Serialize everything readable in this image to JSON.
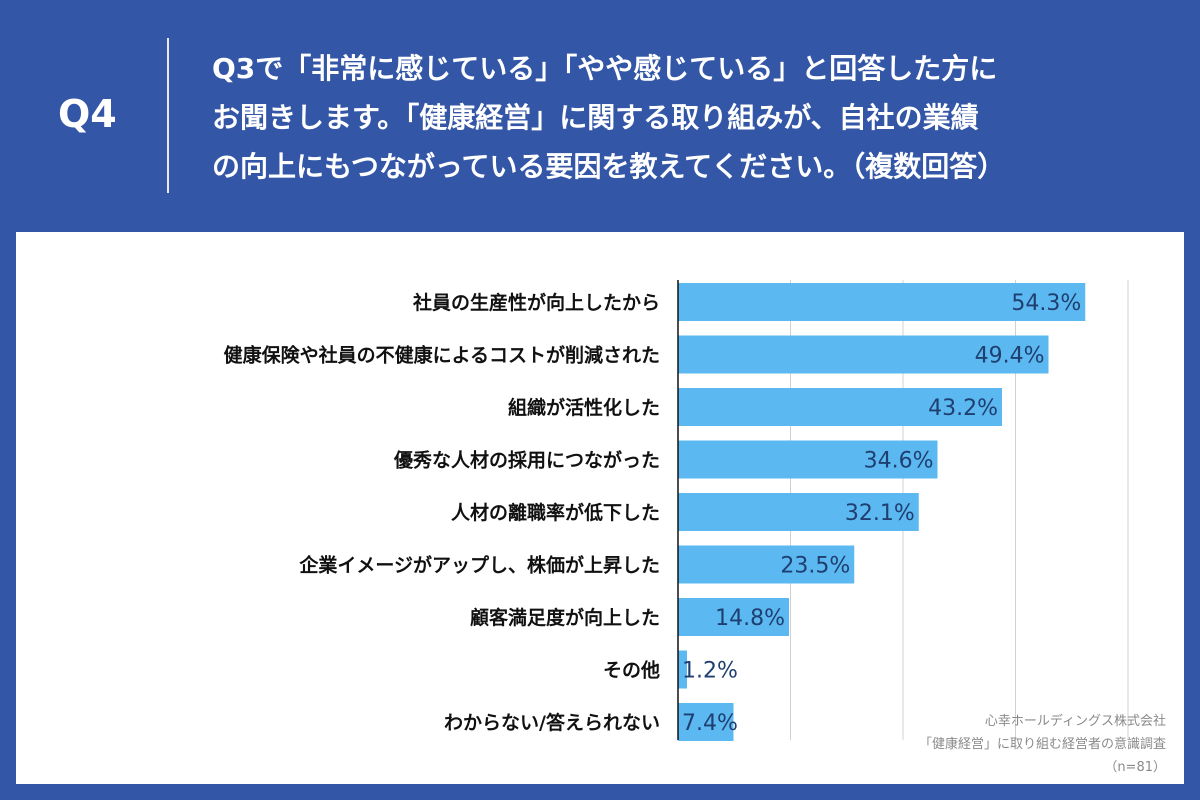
{
  "header": {
    "qnum": "Q4",
    "question_lines": [
      "Q3で「非常に感じている」「やや感じている」と回答した方に",
      "お聞きします。「健康経営」に関する取り組みが、自社の業績",
      "の向上にもつながっている要因を教えてください。（複数回答）"
    ]
  },
  "chart_data": {
    "type": "bar",
    "orientation": "horizontal",
    "categories": [
      "社員の生産性が向上したから",
      "健康保険や社員の不健康によるコストが削減された",
      "組織が活性化した",
      "優秀な人材の採用につながった",
      "人材の離職率が低下した",
      "企業イメージがアップし、株価が上昇した",
      "顧客満足度が向上した",
      "その他",
      "わからない/答えられない"
    ],
    "values": [
      54.3,
      49.4,
      43.2,
      34.6,
      32.1,
      23.5,
      14.8,
      1.2,
      7.4
    ],
    "value_labels": [
      "54.3%",
      "49.4%",
      "43.2%",
      "34.6%",
      "32.1%",
      "23.5%",
      "14.8%",
      "1.2%",
      "7.4%"
    ],
    "xlim": [
      0,
      60
    ],
    "grid": true,
    "bar_color": "#5bb8f0"
  },
  "source": {
    "company": "心幸ホールディングス株式会社",
    "survey": "「健康経営」に取り組む経営者の意識調査",
    "n": "（n=81）"
  },
  "colors": {
    "background": "#3356a6",
    "panel": "#ffffff",
    "bar": "#5bb8f0",
    "value_text": "#1f3f70"
  }
}
